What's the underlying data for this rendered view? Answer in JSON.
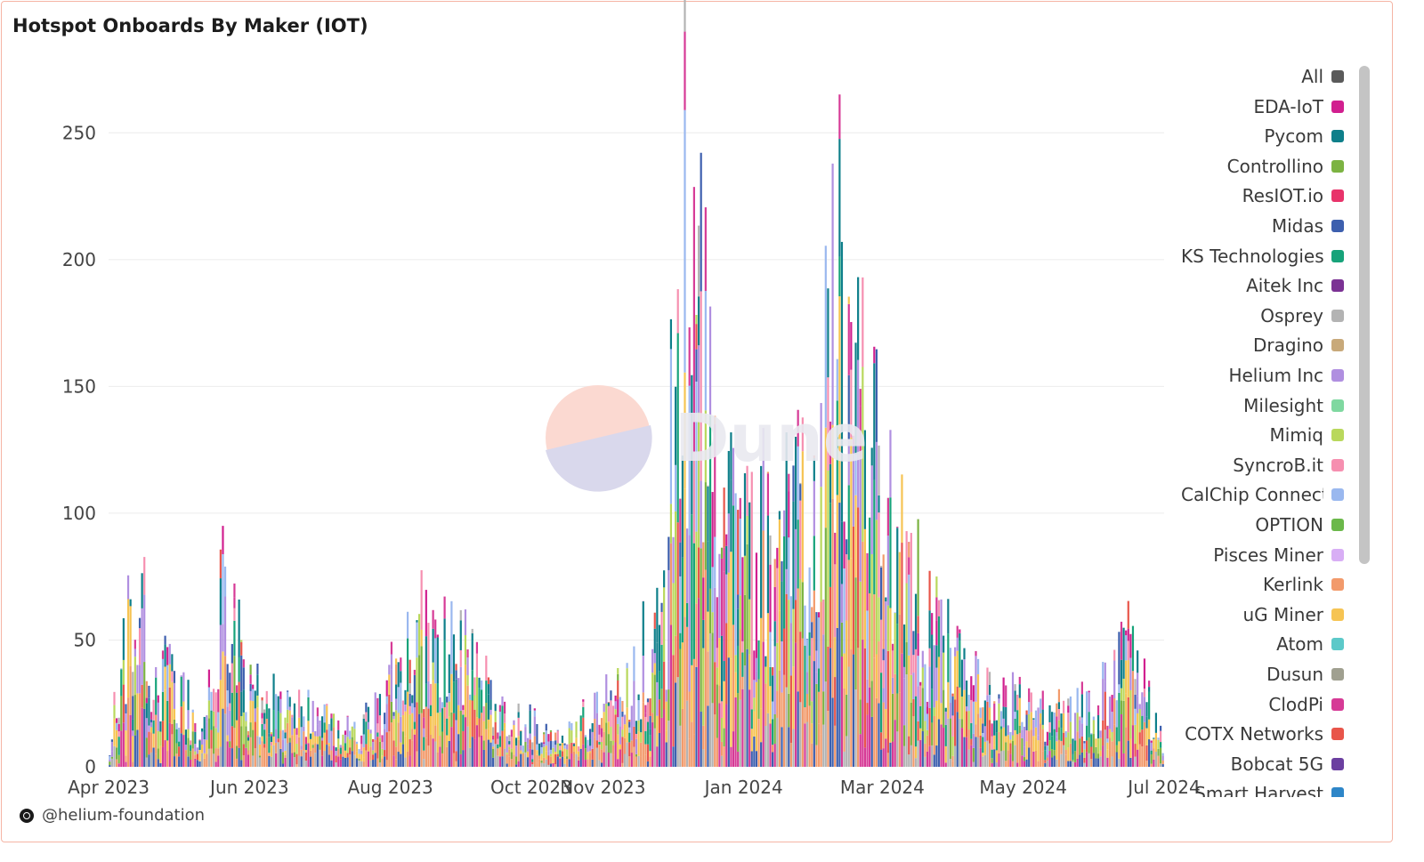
{
  "chart_data": {
    "type": "bar",
    "stacked": true,
    "title": "Hotspot Onboards By Maker (IOT)",
    "xlabel": "",
    "ylabel": "",
    "ylim": [
      0,
      275
    ],
    "yticks": [
      0,
      50,
      100,
      150,
      200,
      250
    ],
    "x_range": [
      "2023-04-01",
      "2024-07-01"
    ],
    "xticks": [
      "Apr 2023",
      "Jun 2023",
      "Aug 2023",
      "Oct 2023",
      "Nov 2023",
      "Jan 2024",
      "Mar 2024",
      "May 2024",
      "Jul 2024"
    ],
    "grid": true,
    "legend_position": "right",
    "series_colors": [
      "#5a5a5a",
      "#d11f8f",
      "#0e7f8a",
      "#7cb342",
      "#e8336a",
      "#3d5fae",
      "#17a37a",
      "#7b3294",
      "#b3b3b3",
      "#c8a97a",
      "#b08fe0",
      "#7fd8a0",
      "#b9d85c",
      "#f68fb0",
      "#9ab8ef",
      "#6bb84a",
      "#d8aef5",
      "#f29a6b",
      "#f6c453",
      "#5cc9c9",
      "#a0a090",
      "#d63a96",
      "#e8554a",
      "#6b3fa0",
      "#2e86c8"
    ],
    "legend": [
      "All",
      "EDA-IoT",
      "Pycom",
      "Controllino",
      "ResIOT.io",
      "Midas",
      "KS Technologies",
      "Aitek Inc",
      "Osprey",
      "Dragino",
      "Helium Inc",
      "Milesight",
      "Mimiq",
      "SyncroB.it",
      "CalChip Connect",
      "OPTION",
      "Pisces Miner",
      "Kerlink",
      "uG Miner",
      "Atom",
      "Dusun",
      "ClodPi",
      "COTX Networks",
      "Bobcat 5G",
      "Smart Harvest"
    ],
    "daily_totals_keypoints": [
      {
        "x": "2023-04-01",
        "y": 13
      },
      {
        "x": "2023-04-08",
        "y": 55
      },
      {
        "x": "2023-04-12",
        "y": 91
      },
      {
        "x": "2023-04-18",
        "y": 60
      },
      {
        "x": "2023-05-01",
        "y": 35
      },
      {
        "x": "2023-05-10",
        "y": 20
      },
      {
        "x": "2023-05-20",
        "y": 82
      },
      {
        "x": "2023-06-01",
        "y": 35
      },
      {
        "x": "2023-06-15",
        "y": 28
      },
      {
        "x": "2023-07-01",
        "y": 25
      },
      {
        "x": "2023-07-15",
        "y": 15
      },
      {
        "x": "2023-08-01",
        "y": 40
      },
      {
        "x": "2023-08-15",
        "y": 65
      },
      {
        "x": "2023-09-01",
        "y": 55
      },
      {
        "x": "2023-09-15",
        "y": 30
      },
      {
        "x": "2023-10-01",
        "y": 20
      },
      {
        "x": "2023-10-15",
        "y": 15
      },
      {
        "x": "2023-11-01",
        "y": 30
      },
      {
        "x": "2023-11-15",
        "y": 50
      },
      {
        "x": "2023-11-28",
        "y": 70
      },
      {
        "x": "2023-12-01",
        "y": 180
      },
      {
        "x": "2023-12-04",
        "y": 272
      },
      {
        "x": "2023-12-10",
        "y": 230
      },
      {
        "x": "2023-12-20",
        "y": 150
      },
      {
        "x": "2024-01-01",
        "y": 120
      },
      {
        "x": "2024-01-15",
        "y": 100
      },
      {
        "x": "2024-02-01",
        "y": 130
      },
      {
        "x": "2024-02-10",
        "y": 231
      },
      {
        "x": "2024-02-20",
        "y": 160
      },
      {
        "x": "2024-03-01",
        "y": 120
      },
      {
        "x": "2024-03-15",
        "y": 80
      },
      {
        "x": "2024-04-01",
        "y": 50
      },
      {
        "x": "2024-04-15",
        "y": 35
      },
      {
        "x": "2024-05-01",
        "y": 30
      },
      {
        "x": "2024-05-15",
        "y": 25
      },
      {
        "x": "2024-06-01",
        "y": 28
      },
      {
        "x": "2024-06-15",
        "y": 53
      },
      {
        "x": "2024-07-01",
        "y": 12
      }
    ]
  },
  "footer": {
    "handle": "@helium-foundation"
  },
  "watermark": {
    "text": "Dune"
  }
}
